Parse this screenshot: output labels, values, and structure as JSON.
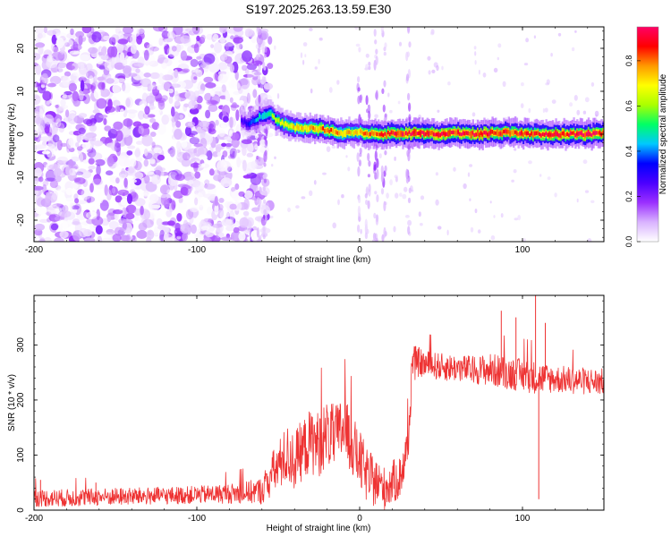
{
  "page_title": "S197.2025.263.13.59.E30",
  "chart_data": [
    {
      "type": "heatmap",
      "title": "S197.2025.263.13.59.E30",
      "xlabel": "Height of straight line (km)",
      "ylabel": "Frequency (Hz)",
      "xlim": [
        -200,
        150
      ],
      "ylim": [
        -25,
        25
      ],
      "x_ticks": [
        {
          "value": -200,
          "label": "-200"
        },
        {
          "value": -100,
          "label": "-100"
        },
        {
          "value": 0,
          "label": "0"
        },
        {
          "value": 100,
          "label": "100"
        }
      ],
      "y_ticks": [
        {
          "value": 20,
          "label": "20"
        },
        {
          "value": 10,
          "label": "10"
        },
        {
          "value": 0,
          "label": "0"
        },
        {
          "value": -10,
          "label": "-10"
        },
        {
          "value": -20,
          "label": "-20"
        }
      ],
      "colorbar": {
        "label": "Normalized spectral amplitude",
        "range": [
          0,
          0.95
        ],
        "colormap": [
          "#ffffff",
          "#d9b3ff",
          "#9b30ff",
          "#4b00ff",
          "#0000ff",
          "#00c8ff",
          "#00ff66",
          "#aaff00",
          "#ffff00",
          "#ff9900",
          "#ff0000",
          "#ff0066"
        ],
        "ticks": [
          {
            "value": 0.0,
            "label": "0.0"
          },
          {
            "value": 0.2,
            "label": "0.2"
          },
          {
            "value": 0.4,
            "label": "0.4"
          },
          {
            "value": 0.6,
            "label": "0.6"
          },
          {
            "value": 0.8,
            "label": "0.8"
          }
        ]
      },
      "noise_region_x": [
        -200,
        -55
      ],
      "ridge": {
        "x": [
          -73,
          -68,
          -62,
          -58,
          -55,
          -52,
          -48,
          -44,
          -40,
          -35,
          -30,
          -25,
          -20,
          -15,
          -10,
          -5,
          0,
          5,
          10,
          15,
          20,
          30,
          40,
          50,
          60,
          70,
          80,
          90,
          100,
          110,
          120,
          130,
          140,
          150
        ],
        "freq": [
          3.0,
          2.5,
          4.0,
          4.5,
          5.0,
          3.5,
          2.5,
          2.0,
          1.5,
          1.5,
          1.5,
          1.2,
          1.0,
          0.5,
          0.3,
          0.2,
          0.5,
          0.2,
          0.0,
          0.0,
          0.2,
          0.3,
          0.2,
          0.0,
          0.3,
          0.0,
          0.3,
          0.4,
          0.2,
          0.0,
          0.0,
          0.0,
          0.1,
          0.2
        ],
        "amp": [
          0.25,
          0.35,
          0.45,
          0.5,
          0.55,
          0.6,
          0.65,
          0.7,
          0.7,
          0.75,
          0.75,
          0.8,
          0.8,
          0.8,
          0.75,
          0.7,
          0.75,
          0.8,
          0.85,
          0.85,
          0.85,
          0.9,
          0.9,
          0.9,
          0.88,
          0.9,
          0.88,
          0.85,
          0.88,
          0.85,
          0.9,
          0.88,
          0.9,
          0.88
        ]
      },
      "vertical_streaks_x": [
        -62,
        -58,
        0,
        5,
        10,
        15,
        30
      ]
    },
    {
      "type": "line",
      "xlabel": "Height of straight line (km)",
      "ylabel": "SNR (10 * v/v)",
      "xlim": [
        -200,
        150
      ],
      "ylim": [
        0,
        390
      ],
      "x_ticks": [
        {
          "value": -200,
          "label": "-200"
        },
        {
          "value": -100,
          "label": "-100"
        },
        {
          "value": 0,
          "label": "0"
        },
        {
          "value": 100,
          "label": "100"
        }
      ],
      "y_ticks": [
        {
          "value": 0,
          "label": "0"
        },
        {
          "value": 100,
          "label": "100"
        },
        {
          "value": 200,
          "label": "200"
        },
        {
          "value": 300,
          "label": "300"
        }
      ],
      "series": [
        {
          "name": "SNR",
          "color": "#ee3333",
          "x": [
            -200,
            -180,
            -160,
            -140,
            -120,
            -100,
            -80,
            -70,
            -60,
            -55,
            -50,
            -45,
            -40,
            -35,
            -30,
            -25,
            -20,
            -15,
            -10,
            -5,
            0,
            5,
            10,
            15,
            20,
            25,
            30,
            32,
            35,
            40,
            50,
            60,
            70,
            80,
            90,
            100,
            110,
            120,
            130,
            140,
            150
          ],
          "y": [
            22,
            22,
            24,
            25,
            26,
            28,
            30,
            32,
            35,
            60,
            80,
            100,
            90,
            110,
            125,
            120,
            140,
            130,
            150,
            120,
            90,
            60,
            50,
            40,
            50,
            60,
            120,
            260,
            270,
            265,
            260,
            258,
            255,
            255,
            250,
            245,
            240,
            238,
            236,
            234,
            232
          ],
          "noise_amplitude": [
            16,
            16,
            16,
            16,
            16,
            16,
            18,
            20,
            25,
            40,
            45,
            55,
            55,
            55,
            60,
            60,
            60,
            60,
            60,
            55,
            55,
            50,
            45,
            40,
            40,
            40,
            40,
            40,
            28,
            25,
            25,
            25,
            25,
            30,
            30,
            30,
            30,
            25,
            25,
            25,
            25
          ]
        }
      ],
      "spikes": [
        {
          "x": -196,
          "y": 55
        },
        {
          "x": -162,
          "y": 50
        },
        {
          "x": 87,
          "y": 362
        },
        {
          "x": 96,
          "y": 350
        },
        {
          "x": 108,
          "y": 390
        },
        {
          "x": 110,
          "y": 20
        },
        {
          "x": 114,
          "y": 340
        }
      ]
    }
  ]
}
